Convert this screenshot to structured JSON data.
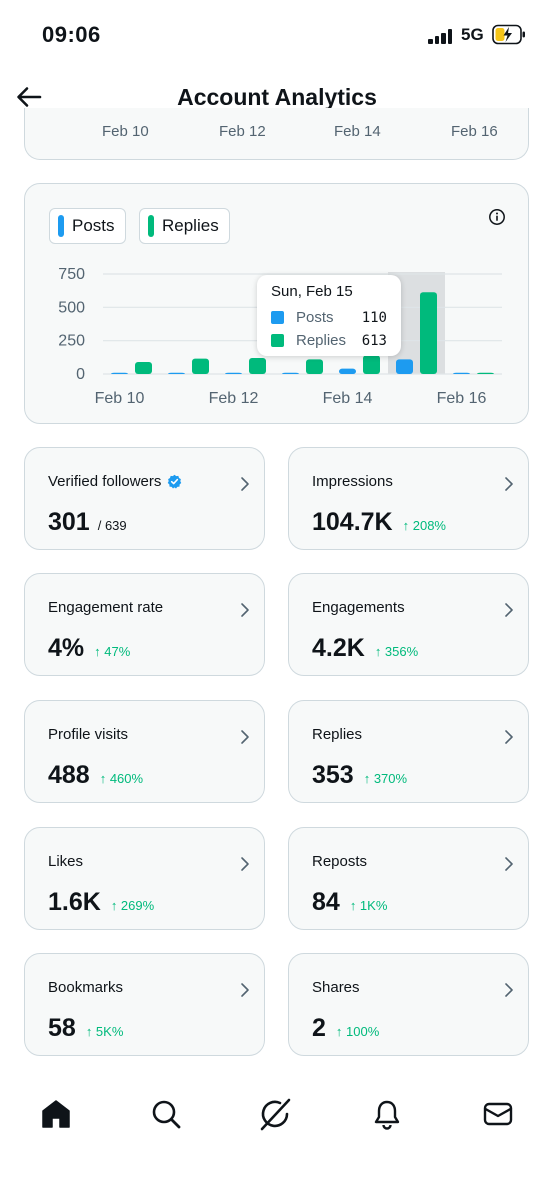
{
  "status_bar": {
    "time": "09:06",
    "network": "5G"
  },
  "header": {
    "title": "Account Analytics",
    "back_icon": "arrow-left-icon"
  },
  "top_chart": {
    "ticks": [
      "Feb 10",
      "Feb 12",
      "Feb 14",
      "Feb 16"
    ]
  },
  "colors": {
    "posts": "#1d9bf0",
    "replies": "#00ba7c",
    "accent_green": "#00ba7c"
  },
  "chart_data": {
    "type": "bar",
    "legend": [
      "Posts",
      "Replies"
    ],
    "categories": [
      "Feb 10",
      "Feb 11",
      "Feb 12",
      "Feb 13",
      "Feb 14",
      "Feb 15",
      "Feb 16"
    ],
    "x_tick_labels": [
      "Feb 10",
      "Feb 12",
      "Feb 14",
      "Feb 16"
    ],
    "y_tick_labels": [
      "750",
      "500",
      "250",
      "0"
    ],
    "ylim": [
      0,
      750
    ],
    "series": [
      {
        "name": "Posts",
        "values": [
          2,
          2,
          6,
          8,
          40,
          110,
          0
        ]
      },
      {
        "name": "Replies",
        "values": [
          90,
          115,
          120,
          110,
          140,
          613,
          0
        ]
      }
    ],
    "highlight_index": 5,
    "tooltip": {
      "date": "Sun, Feb 15",
      "rows": [
        {
          "name": "Posts",
          "value": "110"
        },
        {
          "name": "Replies",
          "value": "613"
        }
      ]
    }
  },
  "metrics": [
    {
      "label": "Verified followers",
      "value": "301",
      "sub": "/ 639",
      "change": "",
      "verified": true
    },
    {
      "label": "Impressions",
      "value": "104.7K",
      "sub": "",
      "change": "↑ 208%"
    },
    {
      "label": "Engagement rate",
      "value": "4%",
      "sub": "",
      "change": "↑ 47%"
    },
    {
      "label": "Engagements",
      "value": "4.2K",
      "sub": "",
      "change": "↑ 356%"
    },
    {
      "label": "Profile visits",
      "value": "488",
      "sub": "",
      "change": "↑ 460%"
    },
    {
      "label": "Replies",
      "value": "353",
      "sub": "",
      "change": "↑ 370%"
    },
    {
      "label": "Likes",
      "value": "1.6K",
      "sub": "",
      "change": "↑ 269%"
    },
    {
      "label": "Reposts",
      "value": "84",
      "sub": "",
      "change": "↑ 1K%"
    },
    {
      "label": "Bookmarks",
      "value": "58",
      "sub": "",
      "change": "↑ 5K%"
    },
    {
      "label": "Shares",
      "value": "2",
      "sub": "",
      "change": "↑ 100%"
    }
  ],
  "tab_bar": {
    "items": [
      {
        "name": "home",
        "icon": "home-icon",
        "active": true
      },
      {
        "name": "search",
        "icon": "search-icon"
      },
      {
        "name": "grok",
        "icon": "grok-icon"
      },
      {
        "name": "notifications",
        "icon": "bell-icon"
      },
      {
        "name": "messages",
        "icon": "mail-icon"
      }
    ]
  }
}
